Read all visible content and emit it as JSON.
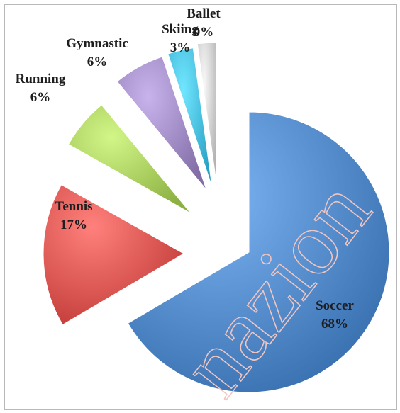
{
  "chart_data": {
    "type": "pie",
    "title": "",
    "legend": "none",
    "slices": [
      {
        "label": "Soccer",
        "value": 68,
        "value_text": "68%",
        "color": "#4f86c6"
      },
      {
        "label": "Tennis",
        "value": 17,
        "value_text": "17%",
        "color": "#d9534f"
      },
      {
        "label": "Running",
        "value": 6,
        "value_text": "6%",
        "color": "#a5c95a"
      },
      {
        "label": "Gymnastic",
        "value": 6,
        "value_text": "6%",
        "color": "#9b86bf"
      },
      {
        "label": "Skiing",
        "value": 3,
        "value_text": "3%",
        "color": "#43b9de"
      },
      {
        "label": "Ballet",
        "value": 0,
        "value_text": "0%",
        "color": "#cccccc"
      }
    ],
    "style": "exploded-3d"
  }
}
